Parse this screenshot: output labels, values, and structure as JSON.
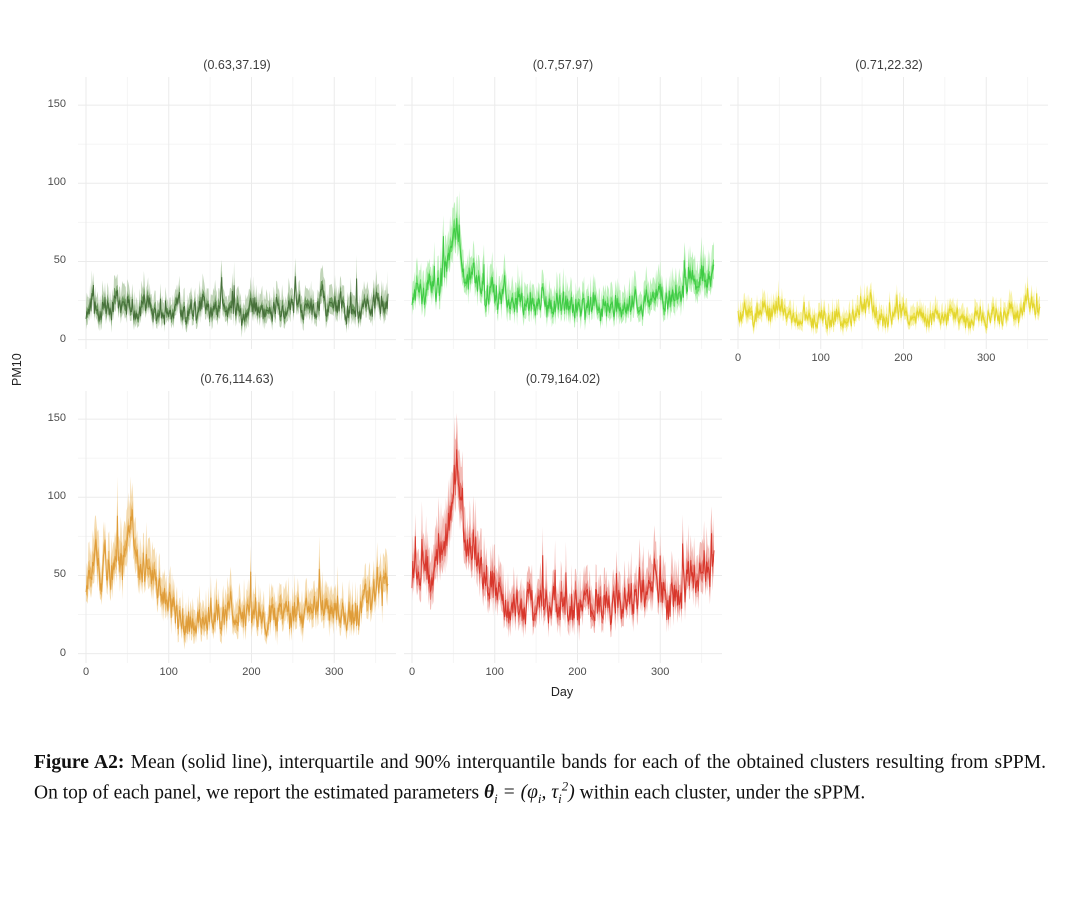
{
  "figure": {
    "kind": "faceted time-series figure from a paper"
  },
  "caption": {
    "label": "Figure A2:",
    "before_math": " Mean (solid line), interquartile and 90% interquantile bands for each of the obtained clusters resulting from sPPM. On top of each panel, we report the estimated parameters ",
    "math": {
      "theta": "θ",
      "i": "i",
      "eq": " = (",
      "phi": "φ",
      "comma": ", ",
      "tau": "τ",
      "two": "2",
      "close": ")"
    },
    "after_math": " within each cluster, under the sPPM."
  },
  "chart_data": {
    "type": "line",
    "facets": true,
    "title": "",
    "x_label": "Day",
    "y_label": "PM10",
    "x_ticks": [
      0,
      100,
      200,
      300
    ],
    "y_ticks": [
      0,
      50,
      100,
      150
    ],
    "x_minor": [
      50,
      150,
      250,
      350
    ],
    "y_minor": [
      25,
      75,
      125
    ],
    "x_range": [
      0,
      365
    ],
    "y_range": [
      0,
      168
    ],
    "grid": true,
    "legend": "none",
    "series_types": [
      "mean (solid line)",
      "interquartile band",
      "90% interquantile band"
    ],
    "panels": [
      {
        "title": "(0.63,37.19)",
        "color_line": "#46703a",
        "color_inner": "#5e9150",
        "color_outer": "#83ab74",
        "op_inner": 0.85,
        "op_outer": 0.5,
        "seed": 101,
        "noise": 6.5,
        "inner": 5,
        "outer": 8,
        "show_x_ticks": false,
        "keypoints": [
          [
            0,
            18
          ],
          [
            8,
            26
          ],
          [
            15,
            14
          ],
          [
            22,
            22
          ],
          [
            30,
            17
          ],
          [
            38,
            27
          ],
          [
            45,
            19
          ],
          [
            52,
            24
          ],
          [
            60,
            15
          ],
          [
            68,
            21
          ],
          [
            75,
            26
          ],
          [
            82,
            16
          ],
          [
            90,
            20
          ],
          [
            98,
            13
          ],
          [
            105,
            19
          ],
          [
            112,
            24
          ],
          [
            120,
            15
          ],
          [
            128,
            21
          ],
          [
            135,
            17
          ],
          [
            142,
            25
          ],
          [
            150,
            16
          ],
          [
            158,
            20
          ],
          [
            165,
            28
          ],
          [
            172,
            17
          ],
          [
            180,
            21
          ],
          [
            188,
            13
          ],
          [
            195,
            19
          ],
          [
            202,
            23
          ],
          [
            210,
            15
          ],
          [
            218,
            21
          ],
          [
            225,
            17
          ],
          [
            232,
            23
          ],
          [
            240,
            15
          ],
          [
            248,
            21
          ],
          [
            255,
            26
          ],
          [
            262,
            18
          ],
          [
            270,
            24
          ],
          [
            278,
            19
          ],
          [
            285,
            27
          ],
          [
            292,
            17
          ],
          [
            300,
            21
          ],
          [
            308,
            25
          ],
          [
            315,
            15
          ],
          [
            322,
            21
          ],
          [
            330,
            17
          ],
          [
            338,
            23
          ],
          [
            345,
            19
          ],
          [
            352,
            27
          ],
          [
            358,
            21
          ],
          [
            365,
            24
          ]
        ]
      },
      {
        "title": "(0.7,57.97)",
        "color_line": "#3ecb44",
        "color_inner": "#5bd95b",
        "color_outer": "#86e683",
        "op_inner": 0.8,
        "op_outer": 0.55,
        "seed": 202,
        "noise": 8,
        "inner": 5,
        "outer": 9,
        "show_x_ticks": false,
        "keypoints": [
          [
            0,
            28
          ],
          [
            8,
            34
          ],
          [
            15,
            24
          ],
          [
            22,
            36
          ],
          [
            30,
            30
          ],
          [
            38,
            44
          ],
          [
            45,
            52
          ],
          [
            50,
            62
          ],
          [
            55,
            72
          ],
          [
            58,
            55
          ],
          [
            62,
            44
          ],
          [
            68,
            38
          ],
          [
            75,
            44
          ],
          [
            82,
            34
          ],
          [
            90,
            28
          ],
          [
            98,
            34
          ],
          [
            105,
            24
          ],
          [
            112,
            30
          ],
          [
            120,
            20
          ],
          [
            128,
            26
          ],
          [
            135,
            21
          ],
          [
            142,
            27
          ],
          [
            150,
            22
          ],
          [
            158,
            26
          ],
          [
            165,
            19
          ],
          [
            172,
            25
          ],
          [
            180,
            21
          ],
          [
            188,
            27
          ],
          [
            195,
            18
          ],
          [
            202,
            24
          ],
          [
            210,
            19
          ],
          [
            218,
            25
          ],
          [
            225,
            17
          ],
          [
            232,
            23
          ],
          [
            240,
            19
          ],
          [
            248,
            25
          ],
          [
            255,
            18
          ],
          [
            262,
            24
          ],
          [
            270,
            28
          ],
          [
            278,
            21
          ],
          [
            285,
            27
          ],
          [
            292,
            22
          ],
          [
            300,
            30
          ],
          [
            308,
            24
          ],
          [
            315,
            30
          ],
          [
            322,
            25
          ],
          [
            330,
            33
          ],
          [
            338,
            46
          ],
          [
            345,
            34
          ],
          [
            352,
            42
          ],
          [
            358,
            35
          ],
          [
            365,
            42
          ]
        ]
      },
      {
        "title": "(0.71,22.32)",
        "color_line": "#e3d52c",
        "color_inner": "#ecdf3e",
        "color_outer": "#f1e765",
        "op_inner": 0.8,
        "op_outer": 0.55,
        "seed": 303,
        "noise": 5,
        "inner": 3.5,
        "outer": 6,
        "show_x_ticks": true,
        "keypoints": [
          [
            0,
            14
          ],
          [
            10,
            20
          ],
          [
            20,
            12
          ],
          [
            30,
            22
          ],
          [
            40,
            15
          ],
          [
            50,
            24
          ],
          [
            60,
            17
          ],
          [
            70,
            11
          ],
          [
            80,
            16
          ],
          [
            90,
            10
          ],
          [
            100,
            15
          ],
          [
            110,
            11
          ],
          [
            120,
            16
          ],
          [
            130,
            10
          ],
          [
            140,
            15
          ],
          [
            150,
            19
          ],
          [
            160,
            26
          ],
          [
            170,
            14
          ],
          [
            180,
            11
          ],
          [
            190,
            16
          ],
          [
            200,
            20
          ],
          [
            210,
            12
          ],
          [
            220,
            15
          ],
          [
            230,
            10
          ],
          [
            240,
            16
          ],
          [
            250,
            12
          ],
          [
            260,
            18
          ],
          [
            270,
            13
          ],
          [
            280,
            10
          ],
          [
            290,
            16
          ],
          [
            300,
            12
          ],
          [
            310,
            17
          ],
          [
            320,
            13
          ],
          [
            330,
            19
          ],
          [
            340,
            15
          ],
          [
            350,
            27
          ],
          [
            358,
            20
          ],
          [
            365,
            23
          ]
        ]
      },
      {
        "title": "(0.76,114.63)",
        "color_line": "#df9c38",
        "color_inner": "#e5a94b",
        "color_outer": "#edc071",
        "op_inner": 0.75,
        "op_outer": 0.55,
        "seed": 404,
        "noise": 9,
        "inner": 6,
        "outer": 9,
        "show_x_ticks": true,
        "keypoints": [
          [
            0,
            42
          ],
          [
            8,
            56
          ],
          [
            12,
            68
          ],
          [
            18,
            44
          ],
          [
            22,
            60
          ],
          [
            30,
            48
          ],
          [
            38,
            62
          ],
          [
            45,
            55
          ],
          [
            50,
            75
          ],
          [
            55,
            90
          ],
          [
            58,
            70
          ],
          [
            62,
            58
          ],
          [
            68,
            50
          ],
          [
            75,
            58
          ],
          [
            82,
            46
          ],
          [
            90,
            40
          ],
          [
            98,
            34
          ],
          [
            105,
            28
          ],
          [
            112,
            24
          ],
          [
            120,
            20
          ],
          [
            128,
            23
          ],
          [
            135,
            18
          ],
          [
            142,
            24
          ],
          [
            150,
            20
          ],
          [
            158,
            26
          ],
          [
            165,
            22
          ],
          [
            172,
            29
          ],
          [
            180,
            24
          ],
          [
            188,
            20
          ],
          [
            195,
            26
          ],
          [
            202,
            29
          ],
          [
            210,
            24
          ],
          [
            218,
            20
          ],
          [
            225,
            25
          ],
          [
            232,
            22
          ],
          [
            240,
            27
          ],
          [
            248,
            23
          ],
          [
            255,
            29
          ],
          [
            262,
            25
          ],
          [
            270,
            31
          ],
          [
            278,
            27
          ],
          [
            285,
            33
          ],
          [
            292,
            28
          ],
          [
            300,
            32
          ],
          [
            308,
            25
          ],
          [
            315,
            22
          ],
          [
            322,
            28
          ],
          [
            330,
            24
          ],
          [
            338,
            42
          ],
          [
            345,
            32
          ],
          [
            352,
            48
          ],
          [
            358,
            38
          ],
          [
            365,
            52
          ]
        ]
      },
      {
        "title": "(0.79,164.02)",
        "color_line": "#d8362b",
        "color_inner": "#de5046",
        "color_outer": "#e87a70",
        "op_inner": 0.7,
        "op_outer": 0.5,
        "seed": 505,
        "noise": 11,
        "inner": 6,
        "outer": 10,
        "show_x_ticks": true,
        "keypoints": [
          [
            0,
            52
          ],
          [
            8,
            44
          ],
          [
            15,
            60
          ],
          [
            22,
            48
          ],
          [
            30,
            58
          ],
          [
            38,
            66
          ],
          [
            45,
            85
          ],
          [
            50,
            110
          ],
          [
            55,
            125
          ],
          [
            58,
            100
          ],
          [
            62,
            80
          ],
          [
            68,
            62
          ],
          [
            75,
            70
          ],
          [
            82,
            55
          ],
          [
            90,
            48
          ],
          [
            98,
            42
          ],
          [
            105,
            36
          ],
          [
            112,
            30
          ],
          [
            120,
            26
          ],
          [
            128,
            32
          ],
          [
            135,
            26
          ],
          [
            142,
            34
          ],
          [
            150,
            28
          ],
          [
            158,
            34
          ],
          [
            165,
            28
          ],
          [
            172,
            36
          ],
          [
            180,
            30
          ],
          [
            188,
            25
          ],
          [
            195,
            32
          ],
          [
            202,
            28
          ],
          [
            210,
            34
          ],
          [
            218,
            28
          ],
          [
            225,
            36
          ],
          [
            232,
            30
          ],
          [
            240,
            27
          ],
          [
            248,
            34
          ],
          [
            255,
            29
          ],
          [
            262,
            38
          ],
          [
            270,
            32
          ],
          [
            278,
            40
          ],
          [
            285,
            34
          ],
          [
            292,
            52
          ],
          [
            300,
            40
          ],
          [
            308,
            30
          ],
          [
            315,
            38
          ],
          [
            322,
            32
          ],
          [
            330,
            42
          ],
          [
            338,
            56
          ],
          [
            345,
            44
          ],
          [
            352,
            60
          ],
          [
            358,
            48
          ],
          [
            365,
            62
          ]
        ]
      }
    ]
  }
}
